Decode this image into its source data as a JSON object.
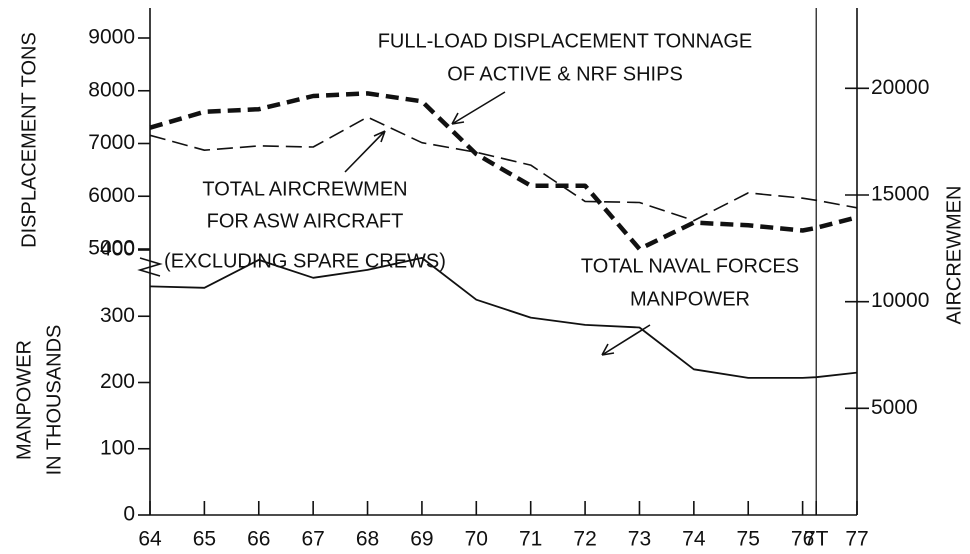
{
  "chart_data": {
    "type": "line",
    "x": [
      64,
      65,
      66,
      67,
      68,
      69,
      70,
      71,
      72,
      73,
      74,
      75,
      76,
      76.25,
      77
    ],
    "xlim": [
      64,
      77
    ],
    "xticks": [
      64,
      65,
      66,
      67,
      68,
      69,
      70,
      71,
      72,
      73,
      74,
      75,
      76,
      {
        "value": 76.25,
        "label": "7T"
      },
      77
    ],
    "ylabel": "DISPLACEMENT TONS",
    "ylim": [
      5000,
      9000
    ],
    "yticks": [
      5000,
      6000,
      7000,
      8000,
      9000
    ],
    "ylabel_lower": [
      "MANPOWER",
      "IN THOUSANDS"
    ],
    "ylim_lower": [
      0,
      400
    ],
    "yticks_lower": [
      0,
      100,
      200,
      300,
      400
    ],
    "y2label": "AIRCREWMEN",
    "y2lim": [
      0,
      22500
    ],
    "y2ticks": [
      5000,
      10000,
      15000,
      20000
    ],
    "series": [
      {
        "name": "FULL-LOAD DISPLACEMENT TONNAGE OF ACTIVE & NRF SHIPS",
        "axis": "y",
        "color": "#111111",
        "style": "heavy-dashed",
        "values": [
          7300,
          7600,
          7650,
          7900,
          7950,
          7800,
          6800,
          6200,
          6200,
          5000,
          5500,
          5450,
          5350,
          5400,
          5600
        ]
      },
      {
        "name": "TOTAL AIRCREWMEN FOR ASW AIRCRAFT (EXCLUDING SPARE CREWS)",
        "axis": "y2",
        "color": "#111111",
        "style": "dashed",
        "values": [
          17800,
          17100,
          17300,
          17250,
          18650,
          17450,
          17000,
          16400,
          14700,
          14650,
          13800,
          15100,
          14850,
          14750,
          14400
        ]
      },
      {
        "name": "TOTAL NAVAL FORCES MANPOWER",
        "axis": "y_lower",
        "color": "#111111",
        "style": "solid",
        "values": [
          345,
          343,
          385,
          358,
          370,
          388,
          325,
          298,
          287,
          283,
          220,
          207,
          207,
          208,
          215
        ]
      }
    ],
    "annotations": [
      {
        "lines": [
          "FULL-LOAD DISPLACEMENT TONNAGE",
          "OF ACTIVE & NRF SHIPS"
        ]
      },
      {
        "lines": [
          "TOTAL AIRCREWMEN",
          "FOR ASW AIRCRAFT",
          "(EXCLUDING SPARE CREWS)"
        ]
      },
      {
        "lines": [
          "TOTAL NAVAL FORCES",
          "MANPOWER"
        ]
      }
    ]
  }
}
